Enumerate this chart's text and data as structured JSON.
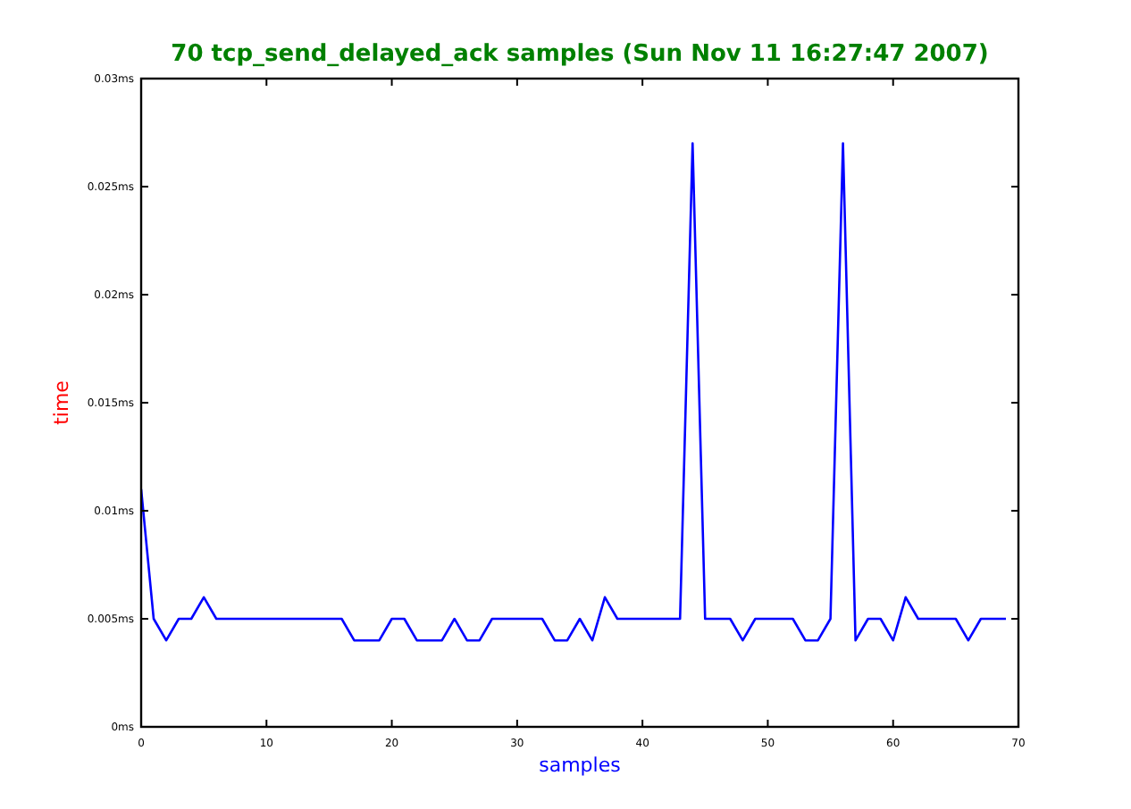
{
  "chart_data": {
    "type": "line",
    "title": "70 tcp_send_delayed_ack samples (Sun Nov 11 16:27:47 2007)",
    "xlabel": "samples",
    "ylabel": "time",
    "x": [
      0,
      1,
      2,
      3,
      4,
      5,
      6,
      7,
      8,
      9,
      10,
      11,
      12,
      13,
      14,
      15,
      16,
      17,
      18,
      19,
      20,
      21,
      22,
      23,
      24,
      25,
      26,
      27,
      28,
      29,
      30,
      31,
      32,
      33,
      34,
      35,
      36,
      37,
      38,
      39,
      40,
      41,
      42,
      43,
      44,
      45,
      46,
      47,
      48,
      49,
      50,
      51,
      52,
      53,
      54,
      55,
      56,
      57,
      58,
      59,
      60,
      61,
      62,
      63,
      64,
      65,
      66,
      67,
      68,
      69
    ],
    "series": [
      {
        "color": "#0000ff",
        "values": [
          0.011,
          0.005,
          0.004,
          0.005,
          0.005,
          0.006,
          0.005,
          0.005,
          0.005,
          0.005,
          0.005,
          0.005,
          0.005,
          0.005,
          0.005,
          0.005,
          0.005,
          0.004,
          0.004,
          0.004,
          0.005,
          0.005,
          0.004,
          0.004,
          0.004,
          0.005,
          0.004,
          0.004,
          0.005,
          0.005,
          0.005,
          0.005,
          0.005,
          0.004,
          0.004,
          0.005,
          0.004,
          0.006,
          0.005,
          0.005,
          0.005,
          0.005,
          0.005,
          0.005,
          0.027,
          0.005,
          0.005,
          0.005,
          0.004,
          0.005,
          0.005,
          0.005,
          0.005,
          0.004,
          0.004,
          0.005,
          0.027,
          0.004,
          0.005,
          0.005,
          0.004,
          0.006,
          0.005,
          0.005,
          0.005,
          0.005,
          0.004,
          0.005,
          0.005,
          0.005
        ]
      }
    ],
    "xlim": [
      0,
      70
    ],
    "xticks": [
      0,
      10,
      20,
      30,
      40,
      50,
      60,
      70
    ],
    "ylim": [
      0,
      0.03
    ],
    "yticks": [
      {
        "value": 0,
        "label": "0ms"
      },
      {
        "value": 0.005,
        "label": "0.005ms"
      },
      {
        "value": 0.01,
        "label": "0.01ms"
      },
      {
        "value": 0.015,
        "label": "0.015ms"
      },
      {
        "value": 0.02,
        "label": "0.02ms"
      },
      {
        "value": 0.025,
        "label": "0.025ms"
      },
      {
        "value": 0.03,
        "label": "0.03ms"
      }
    ],
    "grid": false,
    "marker": "none",
    "line_style": "solid"
  }
}
